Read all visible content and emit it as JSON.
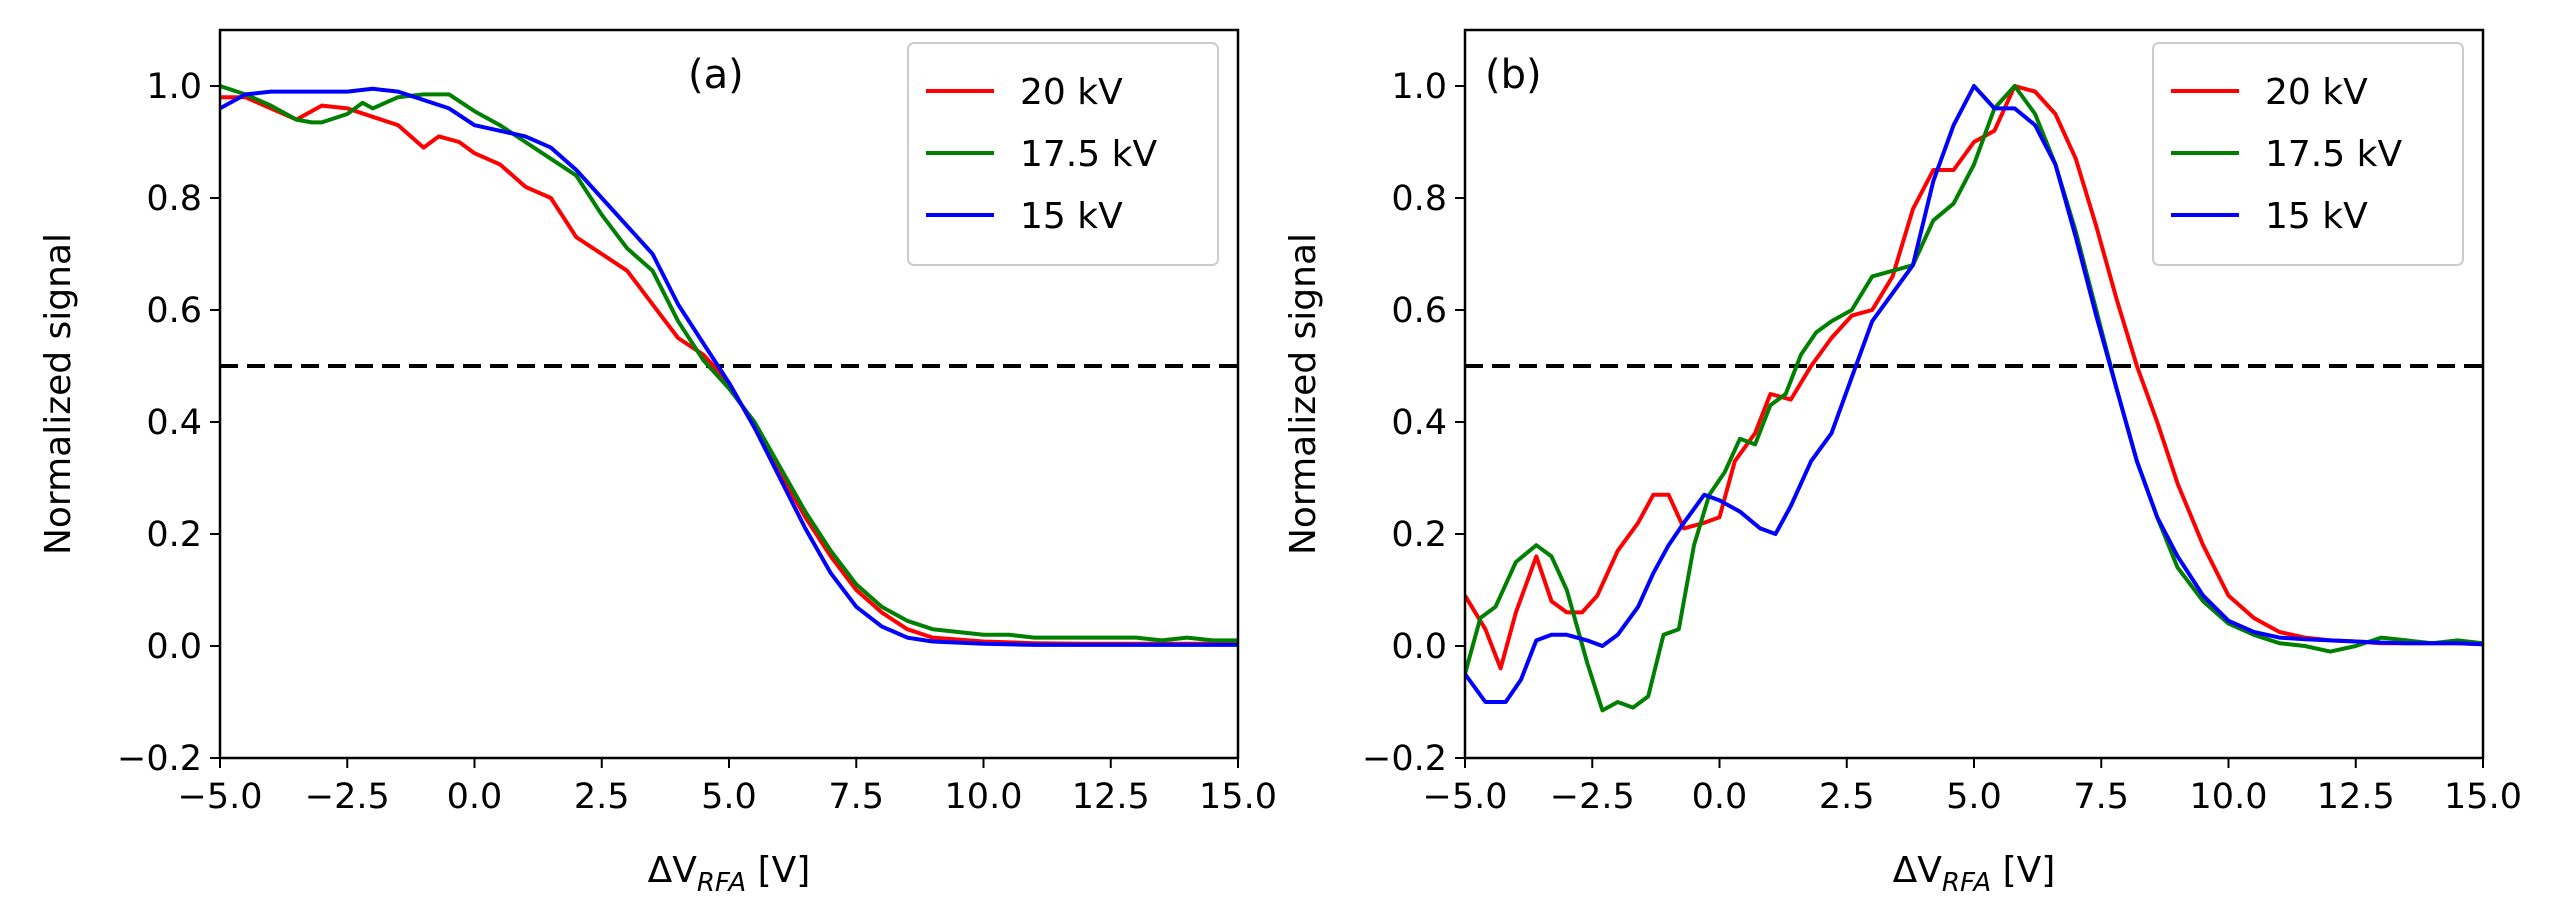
{
  "figure": {
    "colors": {
      "20 kV": "#ff0000",
      "17.5 kV": "#008000",
      "15 kV": "#0000ff",
      "threshold": "#000000"
    }
  },
  "chart_data": [
    {
      "type": "line",
      "panel_label": "(a)",
      "xlabel_main": "ΔV",
      "xlabel_sub": "RFA",
      "xlabel_unit": " [V]",
      "ylabel": "Normalized signal",
      "xlim": [
        -5,
        15
      ],
      "ylim": [
        -0.2,
        1.1
      ],
      "xticks": [
        -5.0,
        -2.5,
        0.0,
        2.5,
        5.0,
        7.5,
        10.0,
        12.5,
        15.0
      ],
      "xtick_labels": [
        "−5.0",
        "−2.5",
        "0.0",
        "2.5",
        "5.0",
        "7.5",
        "10.0",
        "12.5",
        "15.0"
      ],
      "yticks": [
        -0.2,
        0.0,
        0.2,
        0.4,
        0.6,
        0.8,
        1.0
      ],
      "ytick_labels": [
        "−0.2",
        "0.0",
        "0.2",
        "0.4",
        "0.6",
        "0.8",
        "1.0"
      ],
      "threshold": 0.5,
      "legend_position": "top-right",
      "series": [
        {
          "name": "20 kV",
          "color": "#ff0000",
          "x": [
            -5.0,
            -4.5,
            -4.0,
            -3.5,
            -3.0,
            -2.5,
            -2.0,
            -1.5,
            -1.0,
            -0.7,
            -0.3,
            0.0,
            0.5,
            1.0,
            1.5,
            2.0,
            2.5,
            3.0,
            3.5,
            4.0,
            4.5,
            5.0,
            5.5,
            6.0,
            6.5,
            7.0,
            7.5,
            8.0,
            8.5,
            9.0,
            10.0,
            11.0,
            12.0,
            13.0,
            14.0,
            15.0
          ],
          "y": [
            0.98,
            0.98,
            0.96,
            0.94,
            0.965,
            0.96,
            0.945,
            0.93,
            0.89,
            0.91,
            0.9,
            0.88,
            0.86,
            0.82,
            0.8,
            0.73,
            0.7,
            0.67,
            0.61,
            0.55,
            0.52,
            0.47,
            0.39,
            0.31,
            0.23,
            0.16,
            0.1,
            0.06,
            0.03,
            0.015,
            0.008,
            0.005,
            0.004,
            0.004,
            0.004,
            0.004
          ]
        },
        {
          "name": "17.5 kV",
          "color": "#008000",
          "x": [
            -5.0,
            -4.5,
            -4.0,
            -3.5,
            -3.2,
            -3.0,
            -2.5,
            -2.2,
            -2.0,
            -1.5,
            -1.0,
            -0.5,
            0.0,
            0.5,
            1.0,
            1.5,
            2.0,
            2.5,
            3.0,
            3.5,
            4.0,
            4.5,
            5.0,
            5.5,
            6.0,
            6.5,
            7.0,
            7.5,
            8.0,
            8.5,
            9.0,
            9.5,
            10.0,
            10.5,
            11.0,
            11.5,
            12.0,
            12.5,
            13.0,
            13.5,
            14.0,
            14.5,
            15.0
          ],
          "y": [
            1.0,
            0.985,
            0.965,
            0.94,
            0.935,
            0.935,
            0.95,
            0.97,
            0.96,
            0.98,
            0.985,
            0.985,
            0.955,
            0.93,
            0.9,
            0.87,
            0.84,
            0.77,
            0.71,
            0.67,
            0.58,
            0.51,
            0.46,
            0.4,
            0.32,
            0.24,
            0.17,
            0.11,
            0.07,
            0.045,
            0.03,
            0.025,
            0.02,
            0.02,
            0.015,
            0.015,
            0.015,
            0.015,
            0.015,
            0.01,
            0.015,
            0.01,
            0.01
          ]
        },
        {
          "name": "15 kV",
          "color": "#0000ff",
          "x": [
            -5.0,
            -4.5,
            -4.0,
            -3.5,
            -3.0,
            -2.5,
            -2.0,
            -1.5,
            -1.0,
            -0.5,
            0.0,
            0.5,
            1.0,
            1.5,
            2.0,
            2.5,
            3.0,
            3.5,
            4.0,
            4.5,
            5.0,
            5.5,
            6.0,
            6.5,
            7.0,
            7.5,
            8.0,
            8.5,
            9.0,
            10.0,
            11.0,
            12.0,
            13.0,
            14.0,
            15.0
          ],
          "y": [
            0.96,
            0.985,
            0.99,
            0.99,
            0.99,
            0.99,
            0.995,
            0.99,
            0.975,
            0.96,
            0.93,
            0.92,
            0.91,
            0.89,
            0.85,
            0.8,
            0.75,
            0.7,
            0.61,
            0.54,
            0.47,
            0.39,
            0.3,
            0.21,
            0.13,
            0.07,
            0.035,
            0.015,
            0.008,
            0.004,
            0.002,
            0.002,
            0.002,
            0.002,
            0.002
          ]
        }
      ]
    },
    {
      "type": "line",
      "panel_label": "(b)",
      "xlabel_main": "ΔV",
      "xlabel_sub": "RFA",
      "xlabel_unit": " [V]",
      "ylabel": "Normalized signal",
      "xlim": [
        -5,
        15
      ],
      "ylim": [
        -0.2,
        1.1
      ],
      "xticks": [
        -5.0,
        -2.5,
        0.0,
        2.5,
        5.0,
        7.5,
        10.0,
        12.5,
        15.0
      ],
      "xtick_labels": [
        "−5.0",
        "−2.5",
        "0.0",
        "2.5",
        "5.0",
        "7.5",
        "10.0",
        "12.5",
        "15.0"
      ],
      "yticks": [
        -0.2,
        0.0,
        0.2,
        0.4,
        0.6,
        0.8,
        1.0
      ],
      "ytick_labels": [
        "−0.2",
        "0.0",
        "0.2",
        "0.4",
        "0.6",
        "0.8",
        "1.0"
      ],
      "threshold": 0.5,
      "legend_position": "top-right",
      "series": [
        {
          "name": "20 kV",
          "color": "#ff0000",
          "x": [
            -5.0,
            -4.6,
            -4.3,
            -4.0,
            -3.6,
            -3.3,
            -3.0,
            -2.7,
            -2.4,
            -2.0,
            -1.6,
            -1.3,
            -1.0,
            -0.7,
            -0.3,
            0.0,
            0.3,
            0.7,
            1.0,
            1.4,
            1.8,
            2.2,
            2.6,
            3.0,
            3.4,
            3.8,
            4.2,
            4.6,
            5.0,
            5.4,
            5.8,
            6.2,
            6.6,
            7.0,
            7.4,
            7.8,
            8.2,
            8.6,
            9.0,
            9.5,
            10.0,
            10.5,
            11.0,
            11.5,
            12.0,
            12.5,
            13.0,
            13.5,
            14.0,
            14.5,
            15.0
          ],
          "y": [
            0.09,
            0.03,
            -0.04,
            0.06,
            0.16,
            0.08,
            0.06,
            0.06,
            0.09,
            0.17,
            0.22,
            0.27,
            0.27,
            0.21,
            0.22,
            0.23,
            0.33,
            0.38,
            0.45,
            0.44,
            0.5,
            0.55,
            0.59,
            0.6,
            0.66,
            0.78,
            0.85,
            0.85,
            0.9,
            0.92,
            1.0,
            0.99,
            0.95,
            0.87,
            0.75,
            0.62,
            0.5,
            0.4,
            0.29,
            0.18,
            0.09,
            0.05,
            0.025,
            0.015,
            0.01,
            0.008,
            0.005,
            0.005,
            0.005,
            0.005,
            0.003
          ]
        },
        {
          "name": "17.5 kV",
          "color": "#008000",
          "x": [
            -5.0,
            -4.7,
            -4.4,
            -4.0,
            -3.6,
            -3.3,
            -3.0,
            -2.6,
            -2.3,
            -2.0,
            -1.7,
            -1.4,
            -1.1,
            -0.8,
            -0.5,
            -0.2,
            0.1,
            0.4,
            0.7,
            1.0,
            1.3,
            1.6,
            1.9,
            2.2,
            2.6,
            3.0,
            3.4,
            3.8,
            4.2,
            4.6,
            5.0,
            5.4,
            5.8,
            6.2,
            6.6,
            7.0,
            7.4,
            7.8,
            8.2,
            8.6,
            9.0,
            9.5,
            10.0,
            10.5,
            11.0,
            11.5,
            12.0,
            12.5,
            13.0,
            13.5,
            14.0,
            14.5,
            15.0
          ],
          "y": [
            -0.05,
            0.05,
            0.07,
            0.15,
            0.18,
            0.16,
            0.1,
            -0.03,
            -0.115,
            -0.1,
            -0.11,
            -0.09,
            0.02,
            0.03,
            0.18,
            0.27,
            0.31,
            0.37,
            0.36,
            0.43,
            0.45,
            0.52,
            0.56,
            0.58,
            0.6,
            0.66,
            0.67,
            0.68,
            0.76,
            0.79,
            0.86,
            0.96,
            1.0,
            0.95,
            0.86,
            0.74,
            0.6,
            0.46,
            0.33,
            0.23,
            0.14,
            0.08,
            0.04,
            0.02,
            0.005,
            0.0,
            -0.01,
            0.0,
            0.015,
            0.01,
            0.005,
            0.01,
            0.005
          ]
        },
        {
          "name": "15 kV",
          "color": "#0000ff",
          "x": [
            -5.0,
            -4.6,
            -4.2,
            -3.9,
            -3.6,
            -3.3,
            -3.0,
            -2.6,
            -2.3,
            -2.0,
            -1.6,
            -1.3,
            -1.0,
            -0.7,
            -0.3,
            0.0,
            0.4,
            0.8,
            1.1,
            1.4,
            1.8,
            2.2,
            2.6,
            3.0,
            3.4,
            3.8,
            4.2,
            4.6,
            5.0,
            5.4,
            5.8,
            6.2,
            6.6,
            7.0,
            7.4,
            7.8,
            8.2,
            8.6,
            9.0,
            9.5,
            10.0,
            10.5,
            11.0,
            11.5,
            12.0,
            12.5,
            13.0,
            13.5,
            14.0,
            14.5,
            15.0
          ],
          "y": [
            -0.05,
            -0.1,
            -0.1,
            -0.06,
            0.01,
            0.02,
            0.02,
            0.01,
            0.0,
            0.02,
            0.07,
            0.13,
            0.18,
            0.22,
            0.27,
            0.26,
            0.24,
            0.21,
            0.2,
            0.25,
            0.33,
            0.38,
            0.48,
            0.58,
            0.63,
            0.68,
            0.83,
            0.93,
            1.0,
            0.96,
            0.96,
            0.93,
            0.86,
            0.73,
            0.59,
            0.46,
            0.33,
            0.23,
            0.16,
            0.09,
            0.045,
            0.025,
            0.015,
            0.012,
            0.01,
            0.008,
            0.006,
            0.005,
            0.005,
            0.005,
            0.003
          ]
        }
      ]
    }
  ]
}
